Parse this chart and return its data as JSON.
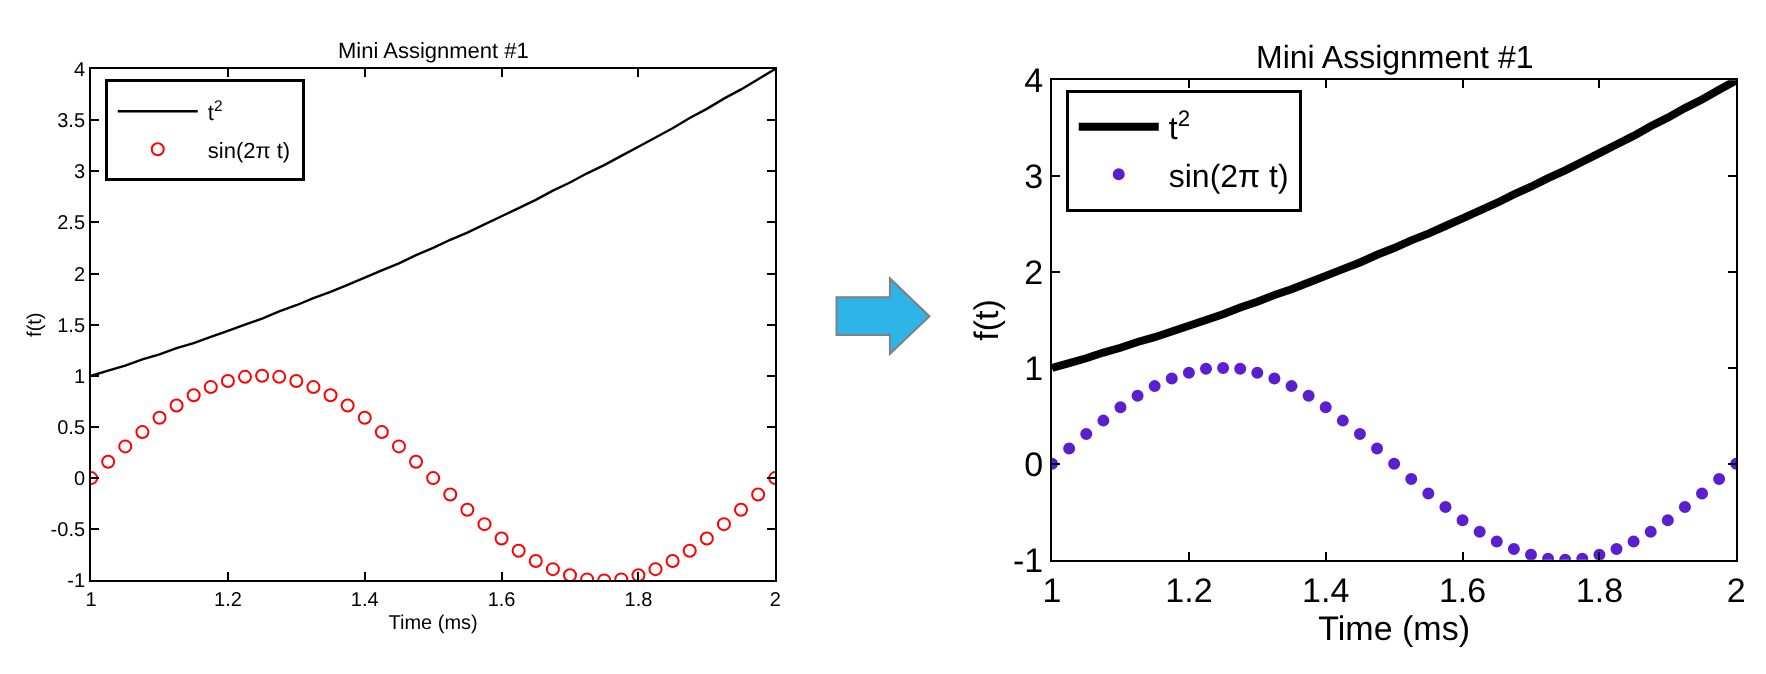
{
  "chart_data": [
    {
      "type": "line",
      "title": "Mini Assignment #1",
      "xlabel": "Time (ms)",
      "ylabel": "f(t)",
      "xlim": [
        1,
        2
      ],
      "ylim": [
        -1,
        4
      ],
      "xticks": [
        1,
        1.2,
        1.4,
        1.6,
        1.8,
        2
      ],
      "yticks": [
        -1,
        -0.5,
        0,
        0.5,
        1,
        1.5,
        2,
        2.5,
        3,
        3.5,
        4
      ],
      "grid": false,
      "legend": "top left",
      "x": [
        1,
        1.025,
        1.05,
        1.075,
        1.1,
        1.125,
        1.15,
        1.175,
        1.2,
        1.225,
        1.25,
        1.275,
        1.3,
        1.325,
        1.35,
        1.375,
        1.4,
        1.425,
        1.45,
        1.475,
        1.5,
        1.525,
        1.55,
        1.575,
        1.6,
        1.625,
        1.65,
        1.675,
        1.7,
        1.725,
        1.75,
        1.775,
        1.8,
        1.825,
        1.85,
        1.875,
        1.9,
        1.925,
        1.95,
        1.975,
        2
      ],
      "series": [
        {
          "name": "t$^{2}$",
          "color": "#000000",
          "marker": "none",
          "values": [
            1,
            1.05,
            1.1,
            1.16,
            1.21,
            1.27,
            1.32,
            1.38,
            1.44,
            1.5,
            1.56,
            1.63,
            1.69,
            1.76,
            1.82,
            1.89,
            1.96,
            2.03,
            2.1,
            2.18,
            2.25,
            2.33,
            2.4,
            2.48,
            2.56,
            2.64,
            2.72,
            2.81,
            2.89,
            2.98,
            3.06,
            3.15,
            3.24,
            3.33,
            3.42,
            3.52,
            3.61,
            3.71,
            3.8,
            3.9,
            4
          ]
        },
        {
          "name": "sin(2π t)",
          "type": "scatter",
          "color": "#ff0000",
          "marker": "circle",
          "values": [
            0,
            0.16,
            0.31,
            0.45,
            0.59,
            0.71,
            0.81,
            0.89,
            0.95,
            0.99,
            1,
            0.99,
            0.95,
            0.89,
            0.81,
            0.71,
            0.59,
            0.45,
            0.31,
            0.16,
            0,
            -0.16,
            -0.31,
            -0.45,
            -0.59,
            -0.71,
            -0.81,
            -0.89,
            -0.95,
            -0.99,
            -1,
            -0.99,
            -0.95,
            -0.89,
            -0.81,
            -0.71,
            -0.59,
            -0.45,
            -0.31,
            -0.16,
            0
          ]
        }
      ]
    },
    {
      "type": "line",
      "title": "Mini Assignment #1",
      "xlabel": "Time (ms)",
      "ylabel": "f(t)",
      "xlim": [
        1,
        2
      ],
      "ylim": [
        -1,
        4
      ],
      "xticks": [
        1,
        1.2,
        1.4,
        1.6,
        1.8,
        2
      ],
      "yticks": [
        -1,
        0,
        1,
        2,
        3,
        4
      ],
      "grid": false,
      "legend": "top left",
      "x": [
        1,
        1.025,
        1.05,
        1.075,
        1.1,
        1.125,
        1.15,
        1.175,
        1.2,
        1.225,
        1.25,
        1.275,
        1.3,
        1.325,
        1.35,
        1.375,
        1.4,
        1.425,
        1.45,
        1.475,
        1.5,
        1.525,
        1.55,
        1.575,
        1.6,
        1.625,
        1.65,
        1.675,
        1.7,
        1.725,
        1.75,
        1.775,
        1.8,
        1.825,
        1.85,
        1.875,
        1.9,
        1.925,
        1.95,
        1.975,
        2
      ],
      "series": [
        {
          "name": "t$^{2}$",
          "color": "#000000",
          "marker": "none",
          "values": [
            1,
            1.05,
            1.1,
            1.16,
            1.21,
            1.27,
            1.32,
            1.38,
            1.44,
            1.5,
            1.56,
            1.63,
            1.69,
            1.76,
            1.82,
            1.89,
            1.96,
            2.03,
            2.1,
            2.18,
            2.25,
            2.33,
            2.4,
            2.48,
            2.56,
            2.64,
            2.72,
            2.81,
            2.89,
            2.98,
            3.06,
            3.15,
            3.24,
            3.33,
            3.42,
            3.52,
            3.61,
            3.71,
            3.8,
            3.9,
            4
          ]
        },
        {
          "name": "sin(2π t)",
          "type": "scatter",
          "color": "#5a1fd0",
          "marker": "circle",
          "values": [
            0,
            0.16,
            0.31,
            0.45,
            0.59,
            0.71,
            0.81,
            0.89,
            0.95,
            0.99,
            1,
            0.99,
            0.95,
            0.89,
            0.81,
            0.71,
            0.59,
            0.45,
            0.31,
            0.16,
            0,
            -0.16,
            -0.31,
            -0.45,
            -0.59,
            -0.71,
            -0.81,
            -0.89,
            -0.95,
            -0.99,
            -1,
            -0.99,
            -0.95,
            -0.89,
            -0.81,
            -0.71,
            -0.59,
            -0.45,
            -0.31,
            -0.16,
            0
          ]
        }
      ]
    }
  ]
}
